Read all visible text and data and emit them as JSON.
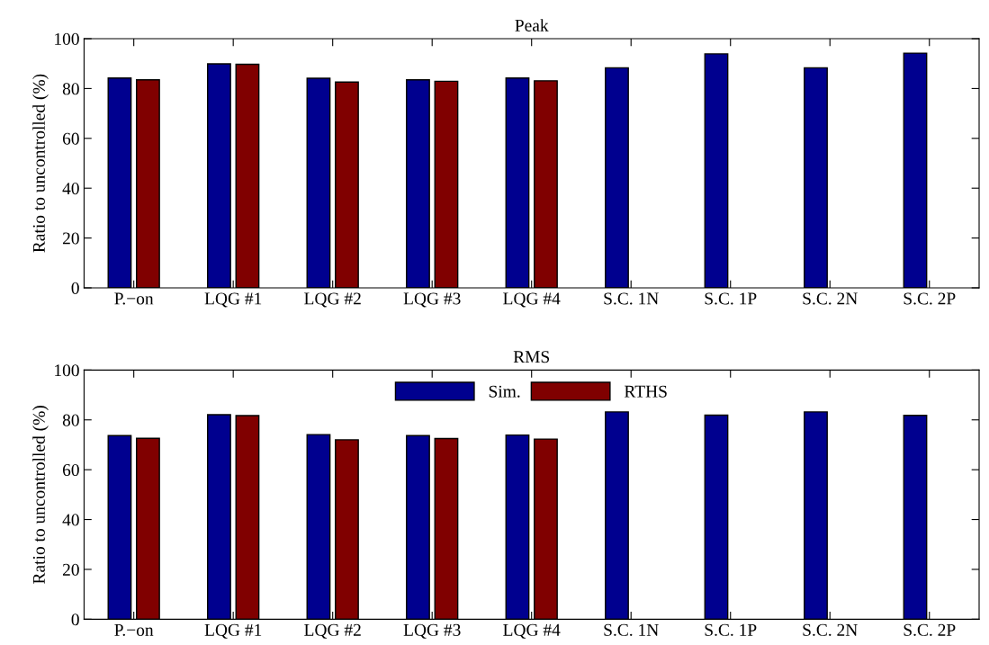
{
  "chart_data": [
    {
      "type": "bar",
      "title": "Peak",
      "ylabel": "Ratio to uncontrolled (%)",
      "categories": [
        "P.−on",
        "LQG #1",
        "LQG #2",
        "LQG #3",
        "LQG #4",
        "S.C. 1N",
        "S.C. 1P",
        "S.C. 2N",
        "S.C. 2P"
      ],
      "series": [
        {
          "color": "#00008f",
          "values": [
            84.2,
            89.9,
            84.1,
            83.5,
            84.2,
            88.3,
            93.9,
            88.3,
            94.2
          ]
        },
        {
          "color": "#800000",
          "values": [
            83.5,
            89.7,
            82.6,
            82.9,
            83.1,
            null,
            null,
            null,
            null
          ]
        }
      ],
      "ylim": [
        0,
        100
      ],
      "yticks": [
        0,
        20,
        40,
        60,
        80,
        100
      ],
      "grid": false
    },
    {
      "type": "bar",
      "title": "RMS",
      "ylabel": "Ratio to uncontrolled (%)",
      "categories": [
        "P.−on",
        "LQG #1",
        "LQG #2",
        "LQG #3",
        "LQG #4",
        "S.C. 1N",
        "S.C. 1P",
        "S.C. 2N",
        "S.C. 2P"
      ],
      "series": [
        {
          "name": "Sim.",
          "color": "#00008f",
          "values": [
            73.7,
            82.1,
            74.1,
            73.7,
            73.9,
            83.2,
            81.9,
            83.2,
            81.8
          ]
        },
        {
          "name": "RTHS",
          "color": "#800000",
          "values": [
            72.6,
            81.7,
            72.0,
            72.5,
            72.3,
            null,
            null,
            null,
            null
          ]
        }
      ],
      "ylim": [
        0,
        100
      ],
      "yticks": [
        0,
        20,
        40,
        60,
        80,
        100
      ],
      "legend": "top",
      "grid": false
    }
  ]
}
